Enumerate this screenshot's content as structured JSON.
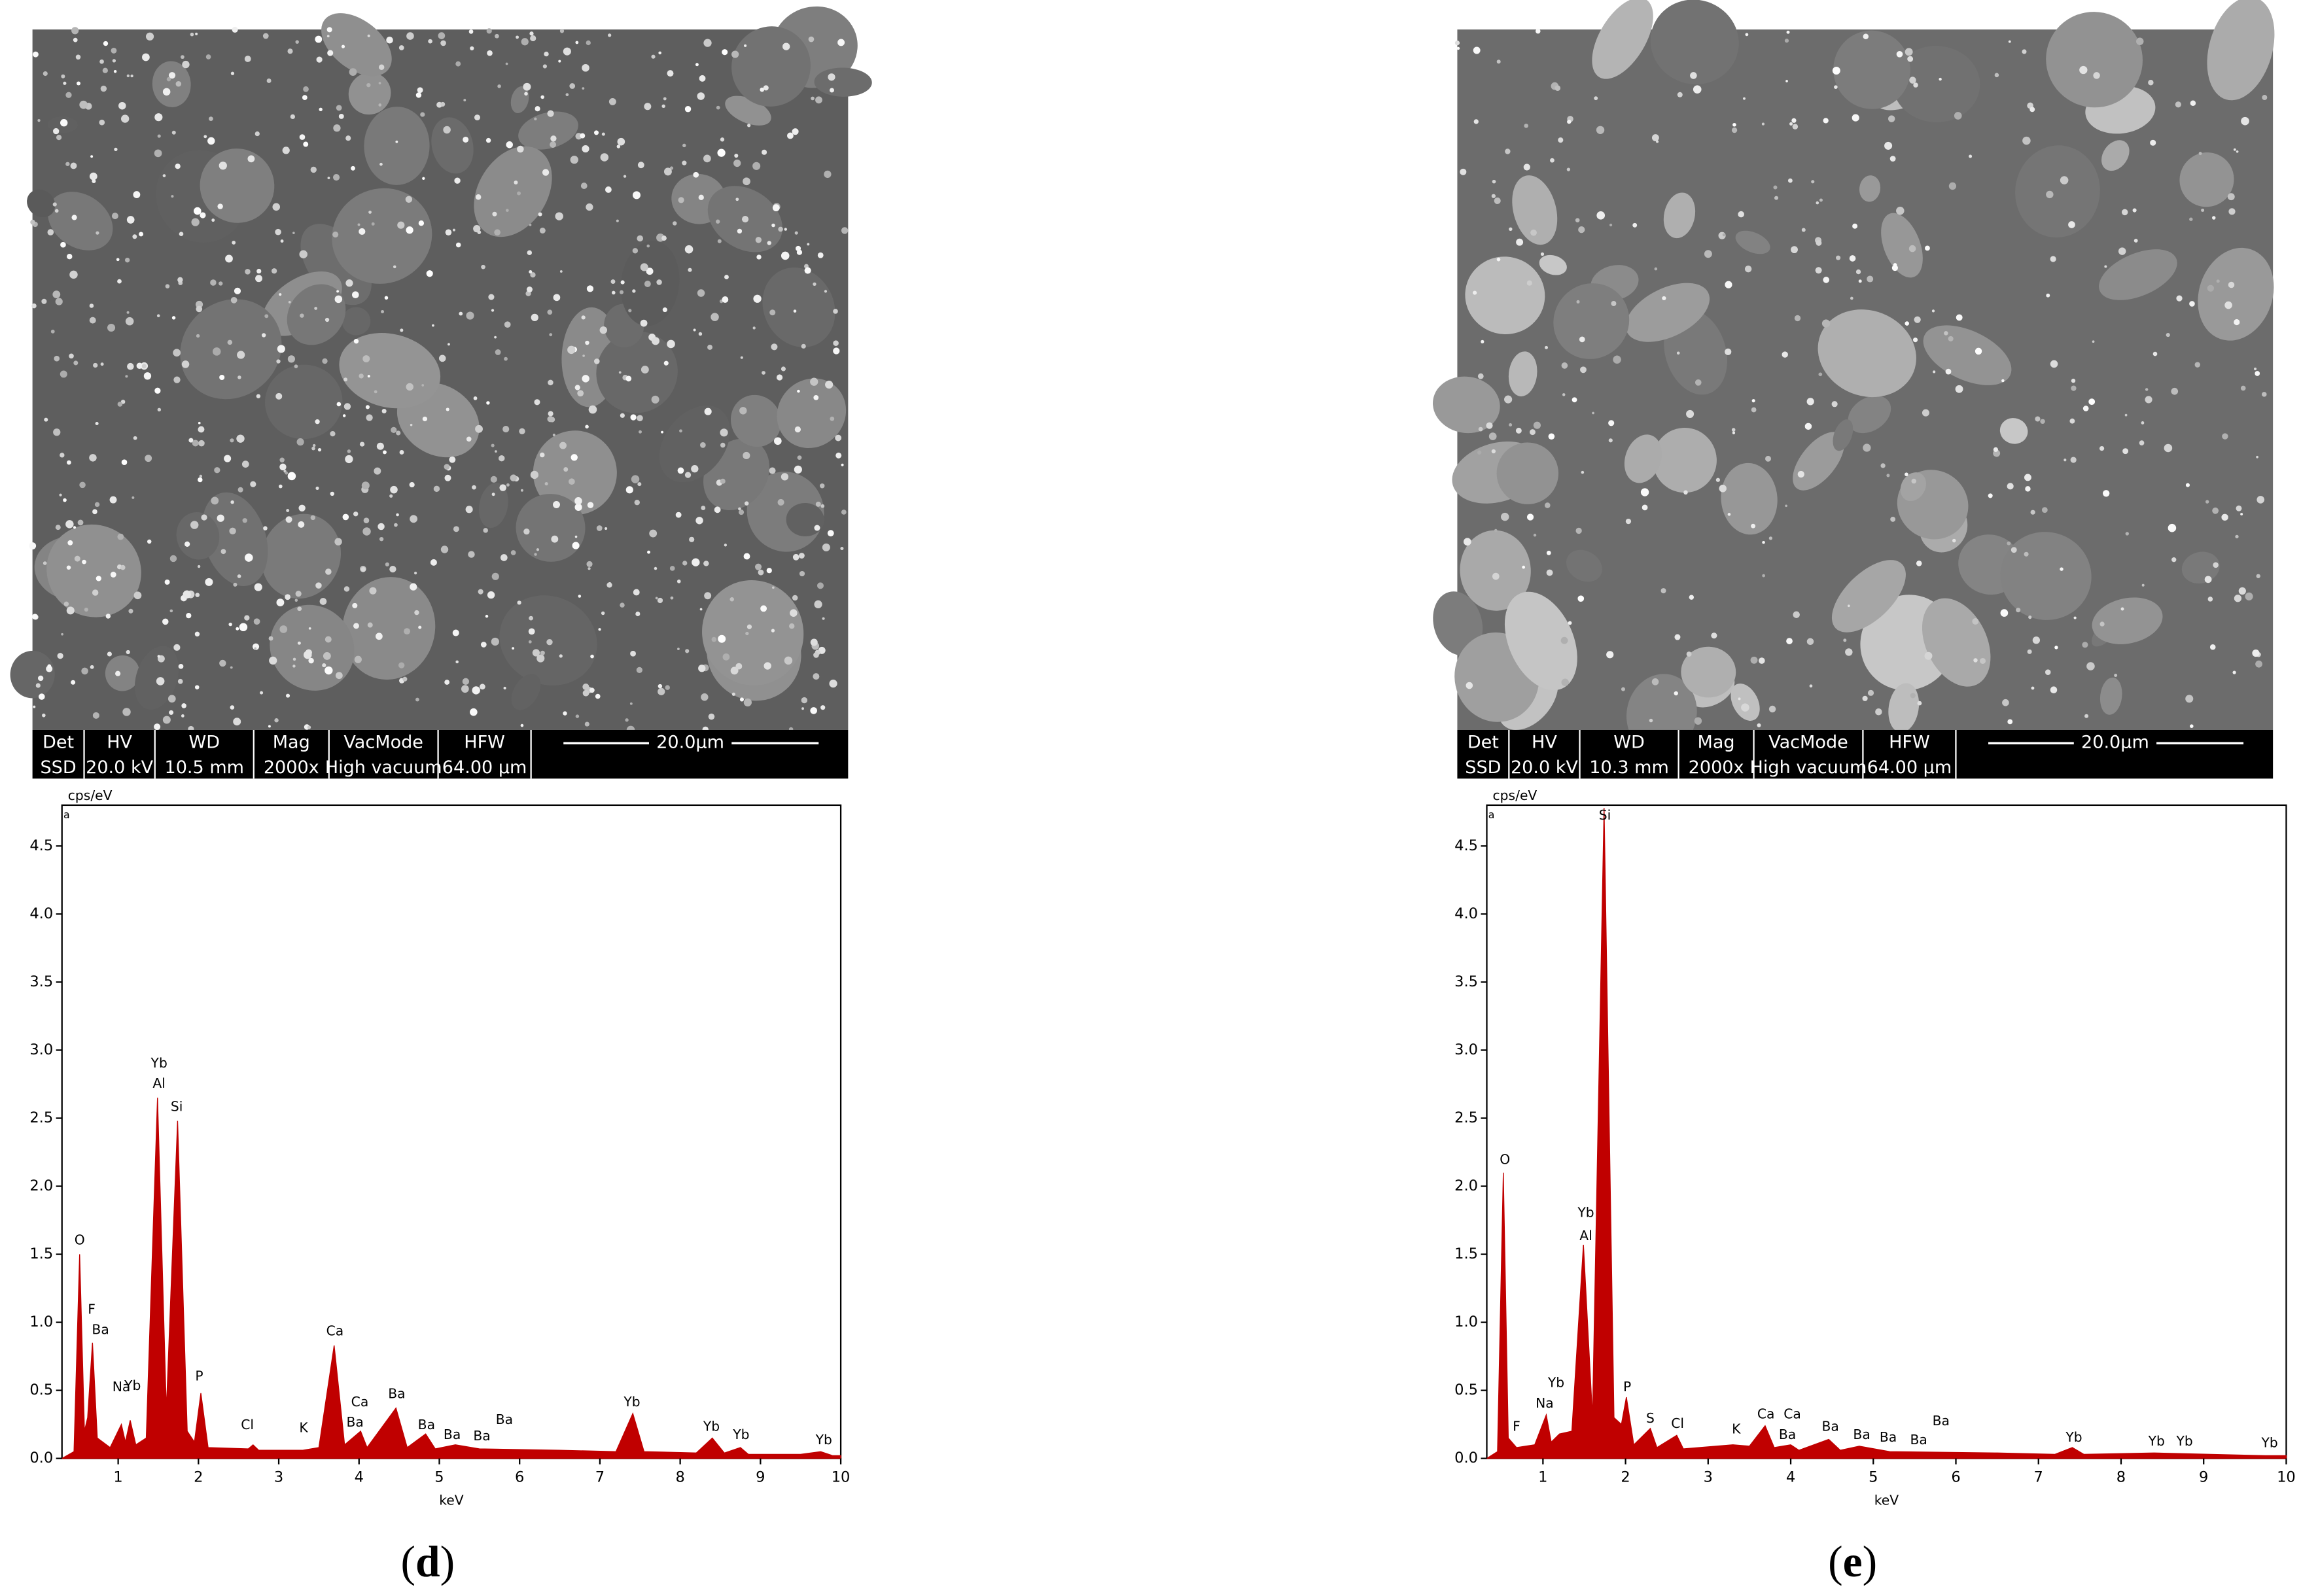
{
  "chart_data": [
    {
      "type": "area",
      "y_label": "cps/eV",
      "x_label": "keV",
      "corner_label": "a",
      "color": "#c00000",
      "x": [
        0.3,
        0.45,
        0.52,
        0.58,
        0.62,
        0.68,
        0.74,
        0.9,
        1.04,
        1.09,
        1.15,
        1.22,
        1.35,
        1.49,
        1.6,
        1.74,
        1.86,
        1.95,
        2.03,
        2.12,
        2.62,
        2.68,
        2.75,
        3.3,
        3.5,
        3.69,
        3.82,
        4.02,
        4.1,
        4.46,
        4.6,
        4.83,
        4.95,
        5.2,
        5.5,
        6.5,
        7.2,
        7.41,
        7.55,
        8.2,
        8.4,
        8.55,
        8.75,
        8.85,
        9.5,
        9.75,
        9.9,
        10
      ],
      "values": [
        0,
        0.05,
        1.5,
        0.2,
        0.3,
        0.85,
        0.15,
        0.08,
        0.25,
        0.12,
        0.28,
        0.1,
        0.15,
        2.65,
        0.35,
        2.48,
        0.2,
        0.12,
        0.48,
        0.08,
        0.07,
        0.1,
        0.06,
        0.06,
        0.08,
        0.83,
        0.1,
        0.2,
        0.08,
        0.37,
        0.08,
        0.18,
        0.07,
        0.1,
        0.07,
        0.06,
        0.05,
        0.33,
        0.05,
        0.04,
        0.15,
        0.04,
        0.08,
        0.03,
        0.03,
        0.05,
        0.02,
        0.02
      ],
      "xlim": [
        0.3,
        10
      ],
      "ylim": [
        0,
        4.8
      ],
      "xticks": [
        1,
        2,
        3,
        4,
        5,
        6,
        7,
        8,
        9,
        10
      ],
      "yticks": [
        {
          "value": 0,
          "label": "0.0"
        },
        {
          "value": 0.5,
          "label": "0.5"
        },
        {
          "value": 1,
          "label": "1.0"
        },
        {
          "value": 1.5,
          "label": "1.5"
        },
        {
          "value": 2,
          "label": "2.0"
        },
        {
          "value": 2.5,
          "label": "2.5"
        },
        {
          "value": 3,
          "label": "3.0"
        },
        {
          "value": 3.5,
          "label": "3.5"
        },
        {
          "value": 4,
          "label": "4.0"
        },
        {
          "value": 4.5,
          "label": "4.5"
        }
      ],
      "peak_labels": [
        {
          "text": "O",
          "x": 0.52,
          "y": 1.6
        },
        {
          "text": "F",
          "x": 0.67,
          "y": 1.09
        },
        {
          "text": "Ba",
          "x": 0.78,
          "y": 0.94
        },
        {
          "text": "Na",
          "x": 1.04,
          "y": 0.52
        },
        {
          "text": "Yb",
          "x": 1.18,
          "y": 0.53
        },
        {
          "text": "Yb",
          "x": 1.51,
          "y": 2.9
        },
        {
          "text": "Al",
          "x": 1.51,
          "y": 2.75
        },
        {
          "text": "Si",
          "x": 1.73,
          "y": 2.58
        },
        {
          "text": "P",
          "x": 2.01,
          "y": 0.6
        },
        {
          "text": "Cl",
          "x": 2.61,
          "y": 0.24
        },
        {
          "text": "K",
          "x": 3.31,
          "y": 0.22
        },
        {
          "text": "Ca",
          "x": 3.7,
          "y": 0.93
        },
        {
          "text": "Ca",
          "x": 4.01,
          "y": 0.41
        },
        {
          "text": "Ba",
          "x": 3.95,
          "y": 0.26
        },
        {
          "text": "Ba",
          "x": 4.47,
          "y": 0.47
        },
        {
          "text": "Ba",
          "x": 4.84,
          "y": 0.24
        },
        {
          "text": "Ba",
          "x": 5.16,
          "y": 0.17
        },
        {
          "text": "Ba",
          "x": 5.53,
          "y": 0.16
        },
        {
          "text": "Ba",
          "x": 5.81,
          "y": 0.28
        },
        {
          "text": "Yb",
          "x": 7.4,
          "y": 0.41
        },
        {
          "text": "Yb",
          "x": 8.39,
          "y": 0.23
        },
        {
          "text": "Yb",
          "x": 8.76,
          "y": 0.17
        },
        {
          "text": "Yb",
          "x": 9.79,
          "y": 0.13
        }
      ]
    },
    {
      "type": "area",
      "y_label": "cps/eV",
      "x_label": "keV",
      "corner_label": "a",
      "color": "#c00000",
      "x": [
        0.32,
        0.45,
        0.52,
        0.58,
        0.68,
        0.9,
        1.04,
        1.1,
        1.2,
        1.35,
        1.49,
        1.6,
        1.74,
        1.86,
        1.95,
        2.01,
        2.1,
        2.3,
        2.38,
        2.62,
        2.7,
        3.3,
        3.5,
        3.69,
        3.8,
        4.0,
        4.1,
        4.46,
        4.6,
        4.83,
        5.2,
        6.5,
        7.2,
        7.41,
        7.55,
        8.4,
        9.75,
        10
      ],
      "values": [
        0,
        0.05,
        2.1,
        0.15,
        0.08,
        0.1,
        0.32,
        0.12,
        0.18,
        0.2,
        1.57,
        0.3,
        4.78,
        0.3,
        0.25,
        0.45,
        0.1,
        0.22,
        0.08,
        0.17,
        0.07,
        0.1,
        0.09,
        0.24,
        0.08,
        0.1,
        0.06,
        0.14,
        0.06,
        0.09,
        0.05,
        0.04,
        0.03,
        0.08,
        0.03,
        0.04,
        0.02,
        0.02
      ],
      "xlim": [
        0.32,
        10
      ],
      "ylim": [
        0,
        4.8
      ],
      "xticks": [
        1,
        2,
        3,
        4,
        5,
        6,
        7,
        8,
        9,
        10
      ],
      "yticks": [
        {
          "value": 0,
          "label": "0.0"
        },
        {
          "value": 0.5,
          "label": "0.5"
        },
        {
          "value": 1,
          "label": "1.0"
        },
        {
          "value": 1.5,
          "label": "1.5"
        },
        {
          "value": 2,
          "label": "2.0"
        },
        {
          "value": 2.5,
          "label": "2.5"
        },
        {
          "value": 3,
          "label": "3.0"
        },
        {
          "value": 3.5,
          "label": "3.5"
        },
        {
          "value": 4,
          "label": "4.0"
        },
        {
          "value": 4.5,
          "label": "4.5"
        }
      ],
      "peak_labels": [
        {
          "text": "O",
          "x": 0.54,
          "y": 2.19
        },
        {
          "text": "F",
          "x": 0.68,
          "y": 0.23
        },
        {
          "text": "Na",
          "x": 1.02,
          "y": 0.4
        },
        {
          "text": "Yb",
          "x": 1.16,
          "y": 0.55
        },
        {
          "text": "Yb",
          "x": 1.52,
          "y": 1.8
        },
        {
          "text": "Al",
          "x": 1.52,
          "y": 1.63
        },
        {
          "text": "Si",
          "x": 1.75,
          "y": 4.72
        },
        {
          "text": "P",
          "x": 2.02,
          "y": 0.52
        },
        {
          "text": "S",
          "x": 2.3,
          "y": 0.29
        },
        {
          "text": "Cl",
          "x": 2.63,
          "y": 0.25
        },
        {
          "text": "K",
          "x": 3.34,
          "y": 0.21
        },
        {
          "text": "Ca",
          "x": 3.7,
          "y": 0.32
        },
        {
          "text": "Ca",
          "x": 4.02,
          "y": 0.32
        },
        {
          "text": "Ba",
          "x": 3.96,
          "y": 0.17
        },
        {
          "text": "Ba",
          "x": 4.48,
          "y": 0.23
        },
        {
          "text": "Ba",
          "x": 4.86,
          "y": 0.17
        },
        {
          "text": "Ba",
          "x": 5.18,
          "y": 0.15
        },
        {
          "text": "Ba",
          "x": 5.55,
          "y": 0.13
        },
        {
          "text": "Ba",
          "x": 5.82,
          "y": 0.27
        },
        {
          "text": "Yb",
          "x": 7.43,
          "y": 0.15
        },
        {
          "text": "Yb",
          "x": 8.43,
          "y": 0.12
        },
        {
          "text": "Yb",
          "x": 8.77,
          "y": 0.12
        },
        {
          "text": "Yb",
          "x": 9.8,
          "y": 0.11
        }
      ]
    }
  ],
  "sem_images": [
    {
      "header": [
        "Det",
        "HV",
        "WD",
        "Mag",
        "VacMode",
        "HFW"
      ],
      "values": [
        "SSD",
        "20.0 kV",
        "10.5 mm",
        "2000x",
        "High vacuum",
        "64.00 µm"
      ],
      "scale_bar": "20.0µm"
    },
    {
      "header": [
        "Det",
        "HV",
        "WD",
        "Mag",
        "VacMode",
        "HFW"
      ],
      "values": [
        "SSD",
        "20.0 kV",
        "10.3 mm",
        "2000x",
        "High vacuum",
        "64.00 µm"
      ],
      "scale_bar": "20.0µm"
    }
  ],
  "panel_labels": [
    {
      "open": "(",
      "letter": "d",
      "close": ")"
    },
    {
      "open": "(",
      "letter": "e",
      "close": ")"
    }
  ]
}
